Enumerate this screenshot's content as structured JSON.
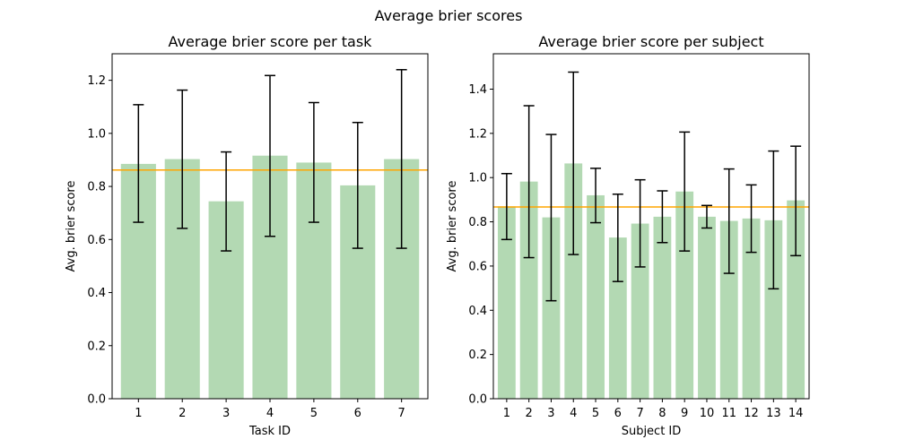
{
  "figure": {
    "suptitle": "Average brier scores"
  },
  "colors": {
    "bar": "#b3d9b3",
    "mean_line": "#ffa500",
    "error_bar": "#000000"
  },
  "chart_data": [
    {
      "type": "bar",
      "title": "Average brier score per task",
      "xlabel": "Task ID",
      "ylabel": "Avg. brier score",
      "ylim": [
        0,
        1.3
      ],
      "yticks": [
        0.0,
        0.2,
        0.4,
        0.6,
        0.8,
        1.0,
        1.2
      ],
      "ytick_labels": [
        "0.0",
        "0.2",
        "0.4",
        "0.6",
        "0.8",
        "1.0",
        "1.2"
      ],
      "categories": [
        "1",
        "2",
        "3",
        "4",
        "5",
        "6",
        "7"
      ],
      "values": [
        0.885,
        0.903,
        0.744,
        0.916,
        0.89,
        0.804,
        0.903
      ],
      "error_low": [
        0.665,
        0.642,
        0.557,
        0.612,
        0.665,
        0.567,
        0.567
      ],
      "error_high": [
        1.108,
        1.163,
        0.93,
        1.218,
        1.116,
        1.041,
        1.24
      ],
      "mean_line": 0.862,
      "grid": false
    },
    {
      "type": "bar",
      "title": "Average brier score per subject",
      "xlabel": "Subject ID",
      "ylabel": "Avg. brier score",
      "ylim": [
        0,
        1.56
      ],
      "yticks": [
        0.0,
        0.2,
        0.4,
        0.6,
        0.8,
        1.0,
        1.2,
        1.4
      ],
      "ytick_labels": [
        "0.0",
        "0.2",
        "0.4",
        "0.6",
        "0.8",
        "1.0",
        "1.2",
        "1.4"
      ],
      "categories": [
        "1",
        "2",
        "3",
        "4",
        "5",
        "6",
        "7",
        "8",
        "9",
        "10",
        "11",
        "12",
        "13",
        "14"
      ],
      "values": [
        0.87,
        0.982,
        0.82,
        1.064,
        0.92,
        0.729,
        0.792,
        0.823,
        0.937,
        0.823,
        0.804,
        0.815,
        0.807,
        0.897
      ],
      "error_low": [
        0.72,
        0.638,
        0.443,
        0.652,
        0.796,
        0.53,
        0.596,
        0.706,
        0.668,
        0.772,
        0.567,
        0.662,
        0.497,
        0.647
      ],
      "error_high": [
        1.018,
        1.325,
        1.195,
        1.477,
        1.042,
        0.925,
        0.99,
        0.94,
        1.206,
        0.874,
        1.039,
        0.967,
        1.12,
        1.142
      ],
      "mean_line": 0.867,
      "grid": false
    }
  ]
}
